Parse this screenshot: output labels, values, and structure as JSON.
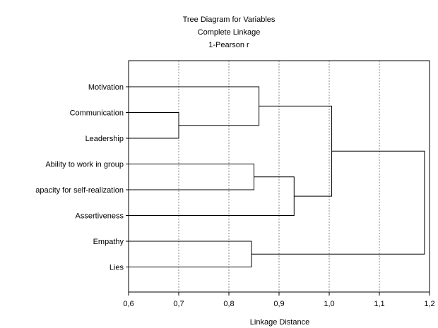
{
  "chart_data": {
    "type": "dendrogram",
    "title": [
      "Tree Diagram for Variables",
      "Complete Linkage",
      "1-Pearson r"
    ],
    "xlabel": "Linkage Distance",
    "xlim": [
      0.6,
      1.2
    ],
    "xticks": [
      0.6,
      0.7,
      0.8,
      0.9,
      1.0,
      1.1,
      1.2
    ],
    "xtick_labels": [
      "0,6",
      "0,7",
      "0,8",
      "0,9",
      "1,0",
      "1,1",
      "1,2"
    ],
    "grid": "vertical dashed",
    "leaves": [
      "Motivation",
      "Communication",
      "Leadership",
      "Ability to work in group",
      "apacity for self-realization",
      "Assertiveness",
      "Empathy",
      "Lies"
    ],
    "merges": [
      {
        "id": "c1",
        "left": "L1",
        "right": "L2",
        "height": 0.7
      },
      {
        "id": "c2",
        "left": "L0",
        "right": "c1",
        "height": 0.86
      },
      {
        "id": "c3",
        "left": "L3",
        "right": "L4",
        "height": 0.85
      },
      {
        "id": "c4",
        "left": "c3",
        "right": "L5",
        "height": 0.93
      },
      {
        "id": "c5",
        "left": "c2",
        "right": "c4",
        "height": 1.005
      },
      {
        "id": "c6",
        "left": "L6",
        "right": "L7",
        "height": 0.845
      },
      {
        "id": "c7",
        "left": "c5",
        "right": "c6",
        "height": 1.19
      }
    ]
  }
}
